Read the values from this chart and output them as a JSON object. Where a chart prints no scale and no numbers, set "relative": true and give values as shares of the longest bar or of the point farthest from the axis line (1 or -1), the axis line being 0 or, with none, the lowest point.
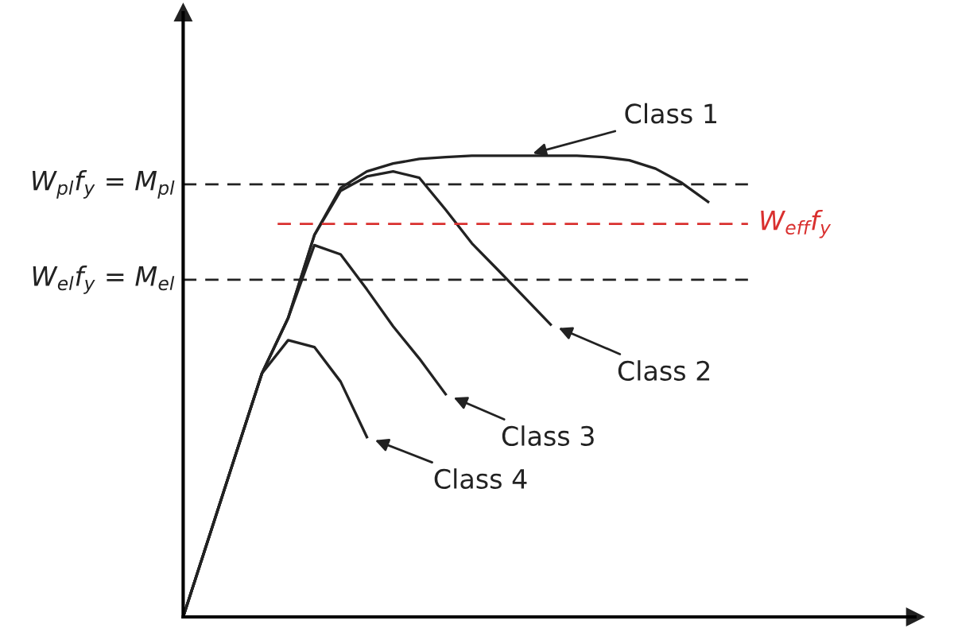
{
  "chart_data": {
    "type": "line",
    "relative": true,
    "line_style": "solid",
    "marker": "none",
    "categories": [
      null,
      null,
      null,
      null,
      null,
      null,
      null,
      null,
      null,
      null,
      null,
      null,
      null,
      null,
      null,
      null,
      null,
      null,
      null,
      null,
      null
    ],
    "series": [
      {
        "name": "Class 1",
        "color": "#222222",
        "values": [
          0,
          0.176,
          0.352,
          0.528,
          0.648,
          0.828,
          0.93,
          0.966,
          0.983,
          0.993,
          0.997,
          1.0,
          1.0,
          1.0,
          1.0,
          1.0,
          0.997,
          0.99,
          0.972,
          0.941,
          0.9
        ]
      },
      {
        "name": "Class 2",
        "color": "#222222",
        "values": [
          0,
          0.176,
          0.352,
          0.528,
          0.648,
          0.828,
          0.924,
          0.955,
          0.966,
          0.952,
          0.883,
          0.81,
          0.752,
          0.693,
          0.634,
          null,
          null,
          null,
          null,
          null,
          null
        ]
      },
      {
        "name": "Class 3",
        "color": "#222222",
        "values": [
          0,
          0.176,
          0.352,
          0.528,
          0.648,
          0.806,
          0.786,
          0.71,
          0.63,
          0.56,
          0.483,
          null,
          null,
          null,
          null,
          null,
          null,
          null,
          null,
          null,
          null
        ]
      },
      {
        "name": "Class 4",
        "color": "#222222",
        "values": [
          0,
          0.176,
          0.352,
          0.528,
          0.6,
          0.585,
          0.51,
          0.39,
          null,
          null,
          null,
          null,
          null,
          null,
          null,
          null,
          null,
          null,
          null,
          null,
          null
        ]
      }
    ],
    "ref_lines": [
      {
        "axis": "y",
        "value": 0.938,
        "label": "W$_{pl}$f$_{y}$ = M$_{pl}$",
        "color": "#222222",
        "line_style": "dashed"
      },
      {
        "axis": "y",
        "value": 0.852,
        "label": "W$_{eff}$f$_{y}$",
        "color": "#d9302f",
        "line_style": "dashed"
      },
      {
        "axis": "y",
        "value": 0.731,
        "label": "W$_{el}$f$_{y}$ = M$_{el}$",
        "color": "#222222",
        "line_style": "dashed"
      }
    ]
  }
}
